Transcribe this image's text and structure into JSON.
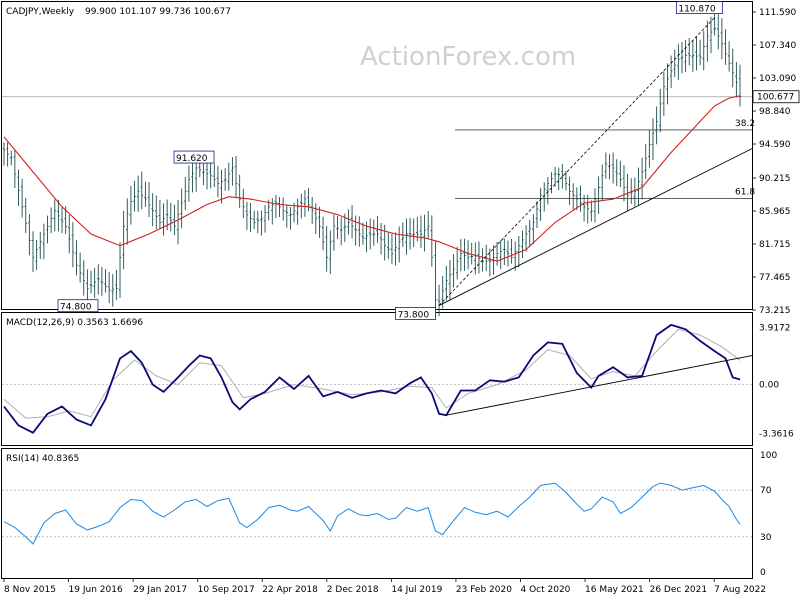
{
  "header": {
    "symbol": "CADJPY,Weekly",
    "ohlc": "99.900 101.107 99.736 100.677"
  },
  "watermark": "ActionForex.com",
  "colors": {
    "price": "#1e4d4d",
    "ma": "#d32020",
    "macd": "#0a0a7a",
    "signal": "#b0b0b0",
    "rsi": "#1e88e5",
    "grid": "#000000",
    "trend": "#000000"
  },
  "chart_data": [
    {
      "type": "candlestick",
      "panel": "price",
      "title": "CADJPY,Weekly",
      "ylim": [
        73.215,
        111.59
      ],
      "y_ticks": [
        "111.590",
        "107.340",
        "103.090",
        "98.840",
        "94.590",
        "90.215",
        "85.965",
        "81.715",
        "77.465",
        "73.215"
      ],
      "x_tick_labels": [
        "8 Nov 2015",
        "19 Jun 2016",
        "29 Jan 2017",
        "10 Sep 2017",
        "22 Apr 2018",
        "2 Dec 2018",
        "14 Jul 2019",
        "23 Feb 2020",
        "4 Oct 2020",
        "16 May 2021",
        "26 Dec 2021",
        "7 Aug 2022"
      ],
      "current_price": "100.677",
      "annotations": [
        {
          "text": "110.870",
          "value": 110.87
        },
        {
          "text": "91.620",
          "value": 91.62
        },
        {
          "text": "74.800",
          "value": 74.8
        },
        {
          "text": "73.800",
          "value": 73.8
        }
      ],
      "fib_levels": [
        {
          "label": "38.2",
          "value": 96.4
        },
        {
          "label": "61.8",
          "value": 87.6
        }
      ],
      "price_path": [
        [
          0,
          93.8
        ],
        [
          2,
          92.8
        ],
        [
          5,
          86.5
        ],
        [
          8,
          80.0
        ],
        [
          11,
          83.0
        ],
        [
          14,
          86.0
        ],
        [
          17,
          84.0
        ],
        [
          20,
          79.0
        ],
        [
          23,
          76.0
        ],
        [
          26,
          77.2
        ],
        [
          29,
          75.8
        ],
        [
          31,
          76.0
        ],
        [
          33,
          84.0
        ],
        [
          35,
          87.2
        ],
        [
          37,
          88.5
        ],
        [
          39,
          87.5
        ],
        [
          41,
          86.0
        ],
        [
          43,
          84.5
        ],
        [
          45,
          85.5
        ],
        [
          47,
          84.0
        ],
        [
          49,
          87.0
        ],
        [
          51,
          90.0
        ],
        [
          53,
          91.5
        ],
        [
          55,
          91.0
        ],
        [
          57,
          90.5
        ],
        [
          59,
          89.5
        ],
        [
          61,
          90.0
        ],
        [
          63,
          91.5
        ],
        [
          65,
          87.5
        ],
        [
          67,
          85.5
        ],
        [
          69,
          84.5
        ],
        [
          71,
          85.0
        ],
        [
          73,
          86.5
        ],
        [
          75,
          87.0
        ],
        [
          77,
          86.0
        ],
        [
          79,
          85.5
        ],
        [
          81,
          86.5
        ],
        [
          83,
          87.5
        ],
        [
          85,
          86.0
        ],
        [
          87,
          84.0
        ],
        [
          89,
          80.0
        ],
        [
          91,
          84.0
        ],
        [
          93,
          83.5
        ],
        [
          95,
          84.5
        ],
        [
          97,
          83.5
        ],
        [
          99,
          82.5
        ],
        [
          101,
          83.0
        ],
        [
          103,
          83.0
        ],
        [
          105,
          81.5
        ],
        [
          107,
          80.5
        ],
        [
          109,
          82.0
        ],
        [
          111,
          83.0
        ],
        [
          113,
          83.0
        ],
        [
          115,
          83.0
        ],
        [
          117,
          84.0
        ],
        [
          118,
          80.0
        ],
        [
          119,
          74.5
        ],
        [
          120,
          74.3
        ],
        [
          122,
          77.0
        ],
        [
          124,
          78.5
        ],
        [
          126,
          80.5
        ],
        [
          128,
          80.0
        ],
        [
          130,
          80.2
        ],
        [
          132,
          79.5
        ],
        [
          134,
          79.5
        ],
        [
          136,
          80.5
        ],
        [
          138,
          81.0
        ],
        [
          140,
          80.0
        ],
        [
          142,
          81.5
        ],
        [
          144,
          83.0
        ],
        [
          146,
          84.5
        ],
        [
          148,
          88.0
        ],
        [
          150,
          89.5
        ],
        [
          152,
          90.8
        ],
        [
          154,
          90.5
        ],
        [
          156,
          88.5
        ],
        [
          158,
          87.5
        ],
        [
          160,
          86.5
        ],
        [
          162,
          86.0
        ],
        [
          164,
          89.0
        ],
        [
          166,
          92.0
        ],
        [
          168,
          91.5
        ],
        [
          170,
          90.0
        ],
        [
          172,
          88.0
        ],
        [
          174,
          88.5
        ],
        [
          176,
          91.0
        ],
        [
          178,
          94.5
        ],
        [
          180,
          97.5
        ],
        [
          182,
          102.0
        ],
        [
          184,
          104.0
        ],
        [
          186,
          105.5
        ],
        [
          188,
          106.0
        ],
        [
          190,
          106.0
        ],
        [
          192,
          105.8
        ],
        [
          194,
          108.5
        ],
        [
          196,
          109.5
        ],
        [
          198,
          107.5
        ],
        [
          200,
          105.0
        ],
        [
          202,
          102.5
        ],
        [
          203,
          100.677
        ]
      ],
      "ma_path": [
        [
          0,
          95.5
        ],
        [
          8,
          91.0
        ],
        [
          16,
          86.5
        ],
        [
          24,
          83.0
        ],
        [
          32,
          81.5
        ],
        [
          40,
          83.0
        ],
        [
          48,
          84.8
        ],
        [
          56,
          86.8
        ],
        [
          62,
          87.8
        ],
        [
          68,
          87.5
        ],
        [
          76,
          86.8
        ],
        [
          84,
          86.5
        ],
        [
          92,
          85.5
        ],
        [
          100,
          84.0
        ],
        [
          108,
          83.0
        ],
        [
          116,
          82.5
        ],
        [
          120,
          82.0
        ],
        [
          128,
          80.5
        ],
        [
          136,
          79.5
        ],
        [
          144,
          81.0
        ],
        [
          152,
          84.5
        ],
        [
          160,
          87.0
        ],
        [
          168,
          87.5
        ],
        [
          176,
          89.0
        ],
        [
          184,
          93.5
        ],
        [
          192,
          97.5
        ],
        [
          196,
          99.5
        ],
        [
          200,
          100.5
        ],
        [
          203,
          100.8
        ]
      ]
    },
    {
      "type": "line",
      "panel": "macd",
      "title": "MACD(12,26,9) 0.3563 1.6696",
      "ylim": [
        -3.8,
        4.3
      ],
      "y_ticks": [
        "3.9172",
        "0.00",
        "-3.3616"
      ],
      "macd_path": [
        [
          0,
          -1.5
        ],
        [
          4,
          -2.8
        ],
        [
          8,
          -3.3
        ],
        [
          12,
          -2.0
        ],
        [
          16,
          -1.5
        ],
        [
          20,
          -2.4
        ],
        [
          24,
          -2.8
        ],
        [
          28,
          -1.0
        ],
        [
          32,
          1.8
        ],
        [
          35,
          2.3
        ],
        [
          38,
          1.5
        ],
        [
          41,
          0.0
        ],
        [
          44,
          -0.5
        ],
        [
          48,
          0.5
        ],
        [
          51,
          1.3
        ],
        [
          54,
          2.0
        ],
        [
          57,
          1.8
        ],
        [
          60,
          0.5
        ],
        [
          63,
          -1.2
        ],
        [
          65,
          -1.7
        ],
        [
          68,
          -1.0
        ],
        [
          72,
          -0.5
        ],
        [
          76,
          0.5
        ],
        [
          80,
          -0.3
        ],
        [
          84,
          0.6
        ],
        [
          88,
          -0.8
        ],
        [
          92,
          -0.5
        ],
        [
          96,
          -0.9
        ],
        [
          100,
          -0.6
        ],
        [
          104,
          -0.4
        ],
        [
          108,
          -0.6
        ],
        [
          112,
          0.1
        ],
        [
          115,
          0.5
        ],
        [
          118,
          -0.6
        ],
        [
          120,
          -2.0
        ],
        [
          122,
          -2.1
        ],
        [
          126,
          -0.4
        ],
        [
          130,
          -0.4
        ],
        [
          134,
          0.3
        ],
        [
          138,
          0.2
        ],
        [
          142,
          0.5
        ],
        [
          146,
          2.0
        ],
        [
          150,
          2.9
        ],
        [
          154,
          2.8
        ],
        [
          158,
          0.8
        ],
        [
          162,
          -0.2
        ],
        [
          164,
          0.6
        ],
        [
          168,
          1.2
        ],
        [
          172,
          0.5
        ],
        [
          176,
          0.6
        ],
        [
          180,
          3.4
        ],
        [
          184,
          4.1
        ],
        [
          188,
          3.8
        ],
        [
          192,
          3.0
        ],
        [
          196,
          2.3
        ],
        [
          199,
          1.8
        ],
        [
          201,
          0.5
        ],
        [
          203,
          0.3563
        ]
      ],
      "signal_path": [
        [
          0,
          -1.0
        ],
        [
          6,
          -2.3
        ],
        [
          12,
          -2.2
        ],
        [
          18,
          -1.8
        ],
        [
          24,
          -2.2
        ],
        [
          30,
          0.3
        ],
        [
          36,
          1.7
        ],
        [
          42,
          0.6
        ],
        [
          48,
          0.0
        ],
        [
          54,
          1.5
        ],
        [
          60,
          1.3
        ],
        [
          66,
          -0.9
        ],
        [
          72,
          -0.6
        ],
        [
          80,
          0.0
        ],
        [
          88,
          -0.3
        ],
        [
          96,
          -0.7
        ],
        [
          104,
          -0.5
        ],
        [
          112,
          -0.1
        ],
        [
          118,
          -0.2
        ],
        [
          122,
          -1.6
        ],
        [
          128,
          -0.6
        ],
        [
          136,
          0.0
        ],
        [
          144,
          1.0
        ],
        [
          150,
          2.4
        ],
        [
          156,
          2.0
        ],
        [
          162,
          0.4
        ],
        [
          168,
          0.9
        ],
        [
          174,
          0.6
        ],
        [
          180,
          2.3
        ],
        [
          186,
          3.8
        ],
        [
          192,
          3.4
        ],
        [
          198,
          2.6
        ],
        [
          203,
          1.6696
        ]
      ]
    },
    {
      "type": "line",
      "panel": "rsi",
      "title": "RSI(14) 40.8365",
      "ylim": [
        0,
        100
      ],
      "y_ticks": [
        "100",
        "70",
        "30",
        "0"
      ],
      "rsi_path": [
        [
          0,
          43
        ],
        [
          3,
          38
        ],
        [
          6,
          30
        ],
        [
          8,
          24
        ],
        [
          11,
          42
        ],
        [
          14,
          50
        ],
        [
          17,
          53
        ],
        [
          20,
          41
        ],
        [
          23,
          36
        ],
        [
          26,
          39
        ],
        [
          29,
          43
        ],
        [
          32,
          55
        ],
        [
          35,
          62
        ],
        [
          38,
          61
        ],
        [
          41,
          52
        ],
        [
          44,
          47
        ],
        [
          47,
          53
        ],
        [
          50,
          60
        ],
        [
          53,
          62
        ],
        [
          56,
          56
        ],
        [
          59,
          61
        ],
        [
          62,
          63
        ],
        [
          65,
          42
        ],
        [
          67,
          38
        ],
        [
          70,
          45
        ],
        [
          73,
          55
        ],
        [
          76,
          57
        ],
        [
          79,
          53
        ],
        [
          81,
          52
        ],
        [
          84,
          56
        ],
        [
          86,
          50
        ],
        [
          88,
          44
        ],
        [
          90,
          35
        ],
        [
          92,
          48
        ],
        [
          95,
          54
        ],
        [
          98,
          49
        ],
        [
          100,
          48
        ],
        [
          103,
          50
        ],
        [
          106,
          45
        ],
        [
          108,
          46
        ],
        [
          111,
          55
        ],
        [
          114,
          52
        ],
        [
          117,
          55
        ],
        [
          119,
          35
        ],
        [
          121,
          32
        ],
        [
          124,
          44
        ],
        [
          127,
          55
        ],
        [
          130,
          51
        ],
        [
          133,
          49
        ],
        [
          136,
          52
        ],
        [
          139,
          47
        ],
        [
          142,
          56
        ],
        [
          145,
          64
        ],
        [
          148,
          74
        ],
        [
          150,
          75
        ],
        [
          152,
          76
        ],
        [
          155,
          68
        ],
        [
          158,
          58
        ],
        [
          160,
          52
        ],
        [
          162,
          54
        ],
        [
          165,
          64
        ],
        [
          168,
          60
        ],
        [
          170,
          50
        ],
        [
          173,
          55
        ],
        [
          176,
          64
        ],
        [
          179,
          73
        ],
        [
          181,
          76
        ],
        [
          184,
          74
        ],
        [
          187,
          70
        ],
        [
          190,
          72
        ],
        [
          193,
          74
        ],
        [
          196,
          69
        ],
        [
          198,
          62
        ],
        [
          200,
          56
        ],
        [
          202,
          45
        ],
        [
          203,
          40.8
        ]
      ]
    }
  ]
}
